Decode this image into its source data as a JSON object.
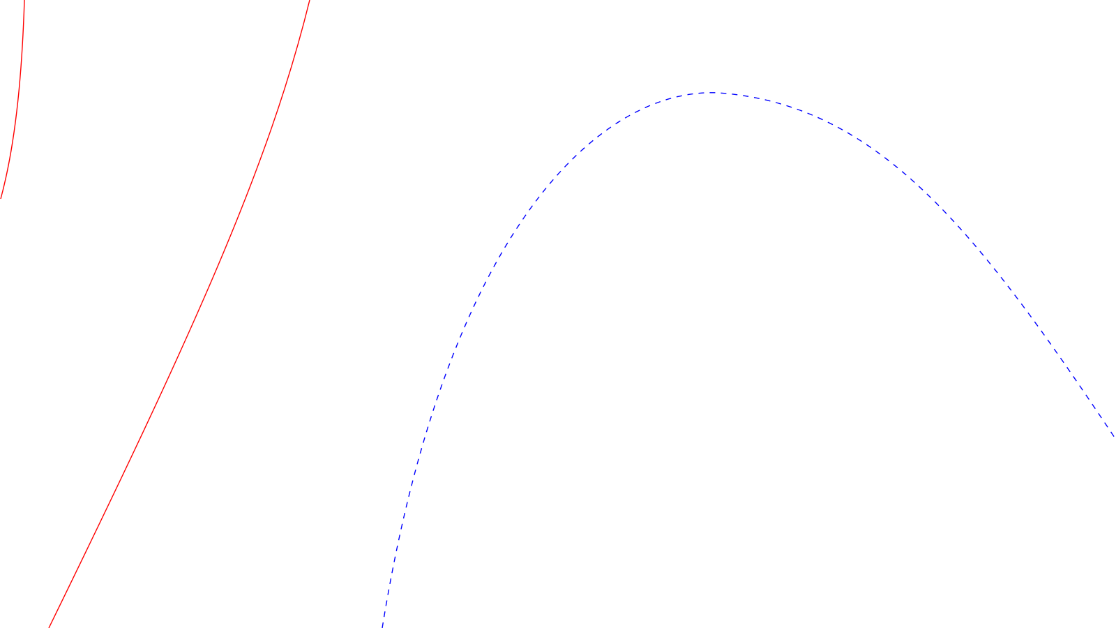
{
  "diagram": {
    "background": "#ffffff",
    "curves": [
      {
        "id": "red-curve-left",
        "style": "solid",
        "color": "#ff0000"
      },
      {
        "id": "red-curve-right",
        "style": "solid",
        "color": "#ff0000"
      },
      {
        "id": "blue-dashed-arc",
        "style": "dashed",
        "color": "#0000ff"
      }
    ]
  }
}
